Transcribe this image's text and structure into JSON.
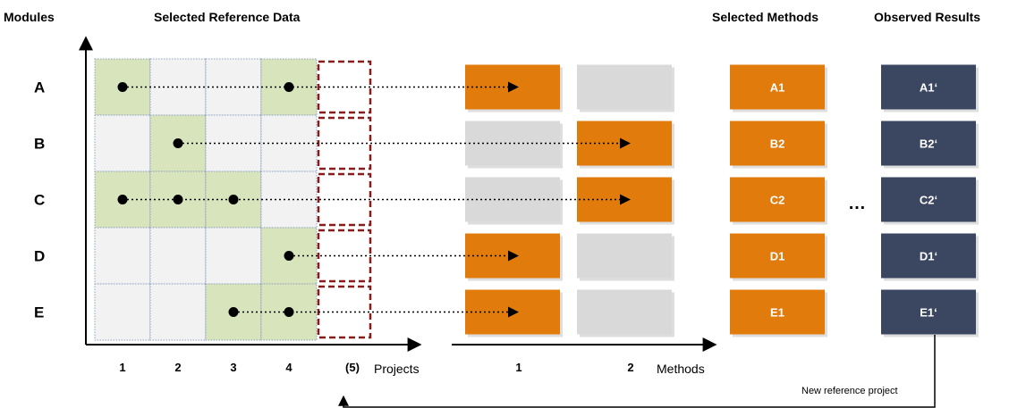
{
  "headers": {
    "modules": "Modules",
    "selected_reference_data": "Selected Reference Data",
    "selected_methods": "Selected Methods",
    "observed_results": "Observed Results"
  },
  "modules": [
    "A",
    "B",
    "C",
    "D",
    "E"
  ],
  "projects": [
    "1",
    "2",
    "3",
    "4"
  ],
  "new_project_label": "(5)",
  "projects_axis_label": "Projects",
  "methods": [
    "1",
    "2"
  ],
  "methods_axis_label": "Methods",
  "selected_reference": [
    [
      1,
      0,
      0,
      1
    ],
    [
      0,
      1,
      0,
      0
    ],
    [
      1,
      1,
      1,
      0
    ],
    [
      0,
      0,
      0,
      1
    ],
    [
      0,
      0,
      1,
      1
    ]
  ],
  "chosen_method_per_module": [
    1,
    2,
    2,
    1,
    1
  ],
  "selected_methods": [
    "A1",
    "B2",
    "C2",
    "D1",
    "E1"
  ],
  "observed_results": [
    "A1‘",
    "B2‘",
    "C2‘",
    "D1‘",
    "E1‘"
  ],
  "ellipsis": "…",
  "feedback_label": "New reference project",
  "colors": {
    "highlight_cell": "#d8e4bc",
    "plain_cell": "#f2f2f2",
    "cell_border": "#8ea0c0",
    "new_project_border": "#8b1a1a",
    "method_selected": "#e07b0c",
    "method_unselected": "#d9d9d9",
    "result_box": "#3b4660",
    "axis": "#000000"
  }
}
